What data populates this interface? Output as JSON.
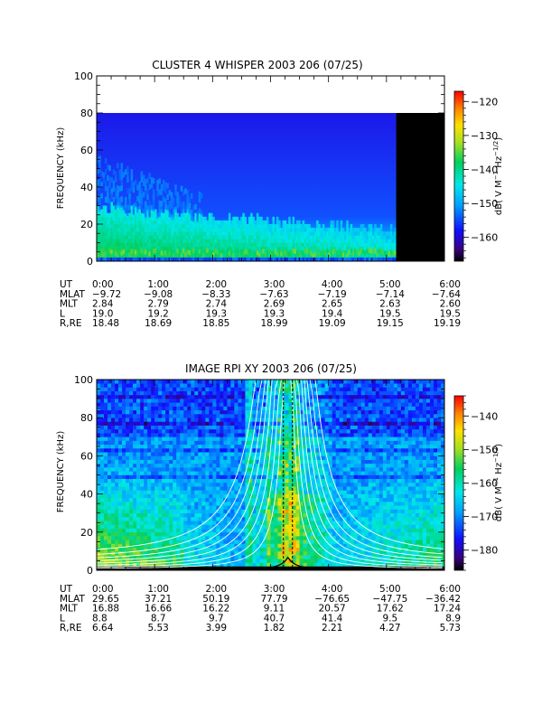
{
  "chart_data": [
    {
      "type": "heatmap",
      "title": "CLUSTER 4 WHISPER 2003 206 (07/25)",
      "ylabel": "FREQUENCY (kHz)",
      "ylim": [
        0,
        100
      ],
      "yticks": [
        "0",
        "20",
        "40",
        "60",
        "80",
        "100"
      ],
      "data_extent_khz": [
        0,
        80
      ],
      "no_data_after_ut": "5:10",
      "colorbar": {
        "label": "dB( V M⁻¹ Hz⁻¹ᐟ²)",
        "label_parts": [
          "dB( V M",
          "−1",
          " Hz",
          "−1/2",
          ")"
        ],
        "range": [
          -167,
          -117
        ],
        "ticks": [
          "-120",
          "-130",
          "-140",
          "-150",
          "-160"
        ]
      },
      "ephemeris": {
        "labels": [
          "UT",
          "MLAT",
          "MLT",
          "L",
          "R,RE"
        ],
        "columns": [
          {
            "ut": "0:00",
            "mlat": "−9.72",
            "mlt": "2.84",
            "l": "19.0",
            "r": "18.48"
          },
          {
            "ut": "1:00",
            "mlat": "−9.08",
            "mlt": "2.79",
            "l": "19.2",
            "r": "18.69"
          },
          {
            "ut": "2:00",
            "mlat": "−8.33",
            "mlt": "2.74",
            "l": "19.3",
            "r": "18.85"
          },
          {
            "ut": "3:00",
            "mlat": "−7.63",
            "mlt": "2.69",
            "l": "19.3",
            "r": "18.99"
          },
          {
            "ut": "4:00",
            "mlat": "−7.19",
            "mlt": "2.65",
            "l": "19.4",
            "r": "19.09"
          },
          {
            "ut": "5:00",
            "mlat": "−7.14",
            "mlt": "2.63",
            "l": "19.5",
            "r": "19.15"
          },
          {
            "ut": "6:00",
            "mlat": "−7.64",
            "mlt": "2.60",
            "l": "19.5",
            "r": "19.19"
          }
        ]
      }
    },
    {
      "type": "heatmap",
      "title": "IMAGE RPI XY 2003 206 (07/25)",
      "ylabel": "FREQUENCY (kHz)",
      "ylim": [
        0,
        100
      ],
      "yticks": [
        "0",
        "20",
        "40",
        "60",
        "80",
        "100"
      ],
      "colorbar": {
        "label": "dB( V M⁻¹ Hz⁻¹ᐟ²)",
        "label_parts": [
          "dB( V M",
          "−1",
          " Hz",
          "−1/2",
          ")"
        ],
        "range": [
          -186,
          -134
        ],
        "ticks": [
          "-140",
          "-150",
          "-160",
          "-170",
          "-180"
        ]
      },
      "ephemeris": {
        "labels": [
          "UT",
          "MLAT",
          "MLT",
          "L",
          "R,RE"
        ],
        "columns": [
          {
            "ut": "0:00",
            "mlat": "29.65",
            "mlt": "16.88",
            "l": "8.8",
            "r": "6.64"
          },
          {
            "ut": "1:00",
            "mlat": "37.21",
            "mlt": "16.66",
            "l": "8.7",
            "r": "5.53"
          },
          {
            "ut": "2:00",
            "mlat": "50.19",
            "mlt": "16.22",
            "l": "9.7",
            "r": "3.99"
          },
          {
            "ut": "3:00",
            "mlat": "77.79",
            "mlt": "9.11",
            "l": "40.7",
            "r": "1.82"
          },
          {
            "ut": "4:00",
            "mlat": "−76.65",
            "mlt": "20.57",
            "l": "41.4",
            "r": "2.21"
          },
          {
            "ut": "5:00",
            "mlat": "−47.75",
            "mlt": "17.62",
            "l": "9.5",
            "r": "4.27"
          },
          {
            "ut": "6:00",
            "mlat": "−36.42",
            "mlt": "17.24",
            "l": "8.9",
            "r": "5.73"
          }
        ]
      }
    }
  ]
}
